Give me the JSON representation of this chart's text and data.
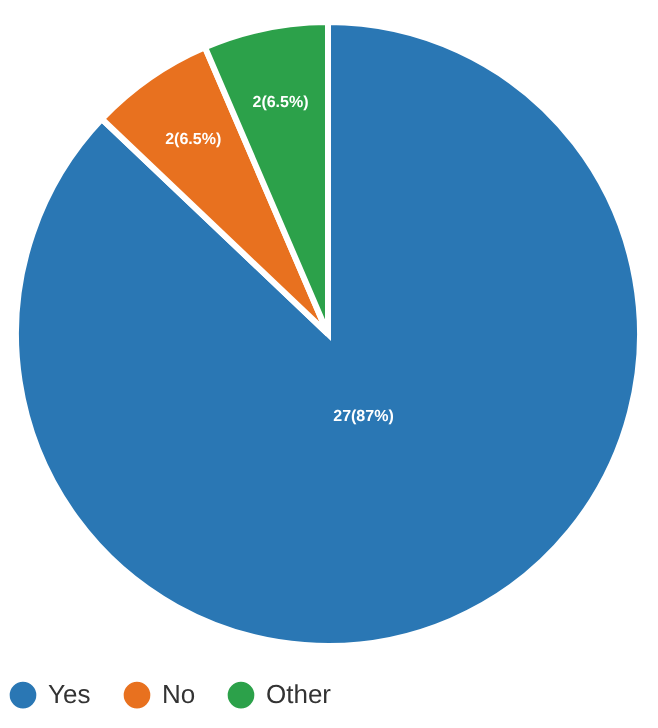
{
  "chart_data": {
    "type": "pie",
    "categories": [
      "Yes",
      "No",
      "Other"
    ],
    "values": [
      27,
      2,
      2
    ],
    "colors": [
      "#2a77b4",
      "#e8711f",
      "#2ca14a"
    ],
    "value_labels": [
      "27(87%)",
      "2(6.5%)",
      "2(6.5%)"
    ],
    "legend": "bottom"
  }
}
